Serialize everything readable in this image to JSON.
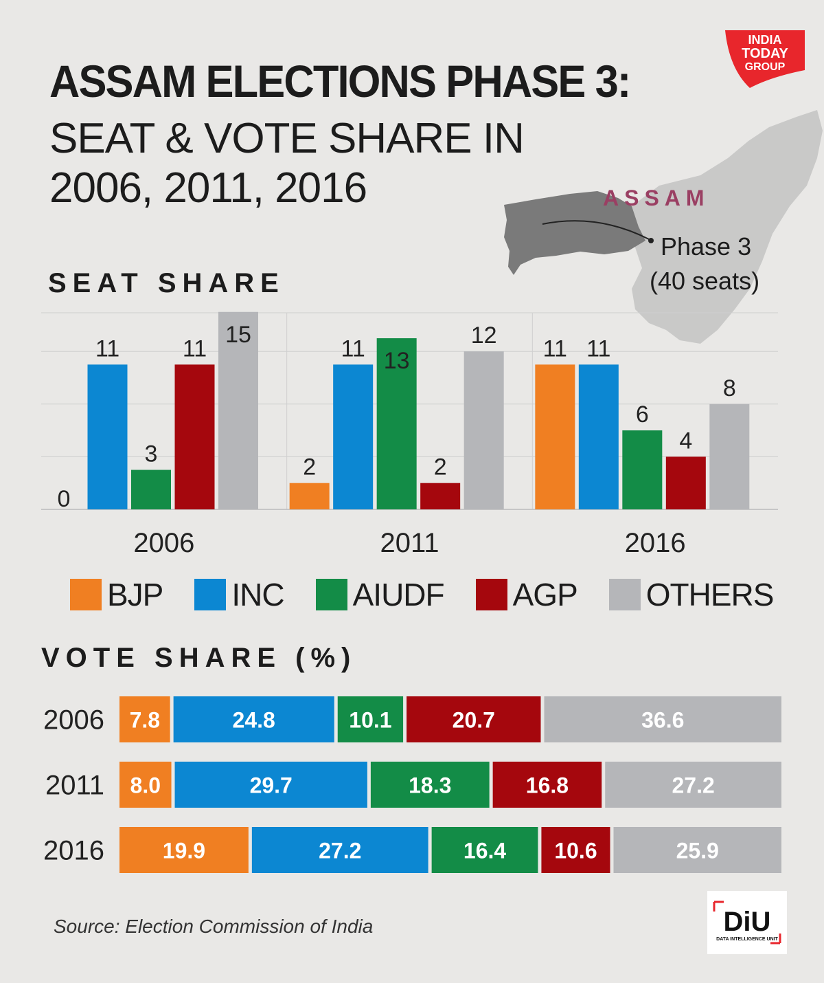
{
  "header": {
    "title_line1": "ASSAM ELECTIONS PHASE 3:",
    "title_line2": "SEAT & VOTE SHARE IN",
    "title_line3": "2006, 2011, 2016"
  },
  "logo": {
    "line1": "INDIA",
    "line2": "TODAY",
    "line3": "GROUP",
    "color": "#e8262c"
  },
  "map": {
    "state_label": "ASSAM",
    "phase_label": "Phase 3",
    "seats_label": "(40 seats)"
  },
  "parties": [
    {
      "name": "BJP",
      "color": "#f07f22"
    },
    {
      "name": "INC",
      "color": "#0c87d2"
    },
    {
      "name": "AIUDF",
      "color": "#138c47"
    },
    {
      "name": "AGP",
      "color": "#a5070d"
    },
    {
      "name": "OTHERS",
      "color": "#b5b6b9"
    }
  ],
  "chart_data": [
    {
      "type": "bar",
      "title": "SEAT SHARE",
      "categories": [
        "2006",
        "2011",
        "2016"
      ],
      "series": [
        {
          "name": "BJP",
          "values": [
            0,
            2,
            11
          ]
        },
        {
          "name": "INC",
          "values": [
            11,
            11,
            11
          ]
        },
        {
          "name": "AIUDF",
          "values": [
            3,
            13,
            6
          ]
        },
        {
          "name": "AGP",
          "values": [
            11,
            2,
            4
          ]
        },
        {
          "name": "OTHERS",
          "values": [
            15,
            12,
            8
          ]
        }
      ],
      "ylim": [
        0,
        15
      ],
      "legend": "bottom"
    },
    {
      "type": "bar",
      "orientation": "horizontal-stacked",
      "title": "VOTE SHARE (%)",
      "categories": [
        "2006",
        "2011",
        "2016"
      ],
      "series": [
        {
          "name": "BJP",
          "values": [
            7.8,
            8.0,
            19.9
          ]
        },
        {
          "name": "INC",
          "values": [
            24.8,
            29.7,
            27.2
          ]
        },
        {
          "name": "AIUDF",
          "values": [
            10.1,
            18.3,
            16.4
          ]
        },
        {
          "name": "AGP",
          "values": [
            20.7,
            16.8,
            10.6
          ]
        },
        {
          "name": "OTHERS",
          "values": [
            36.6,
            27.2,
            25.9
          ]
        }
      ],
      "labels": [
        [
          "7.8",
          "24.8",
          "10.1",
          "20.7",
          "36.6"
        ],
        [
          "8.0",
          "29.7",
          "18.3",
          "16.8",
          "27.2"
        ],
        [
          "19.9",
          "27.2",
          "16.4",
          "10.6",
          "25.9"
        ]
      ]
    }
  ],
  "footer": {
    "source": "Source: Election Commission of India",
    "diu_mark": "DiU",
    "diu_sub": "DATA INTELLIGENCE UNIT"
  }
}
